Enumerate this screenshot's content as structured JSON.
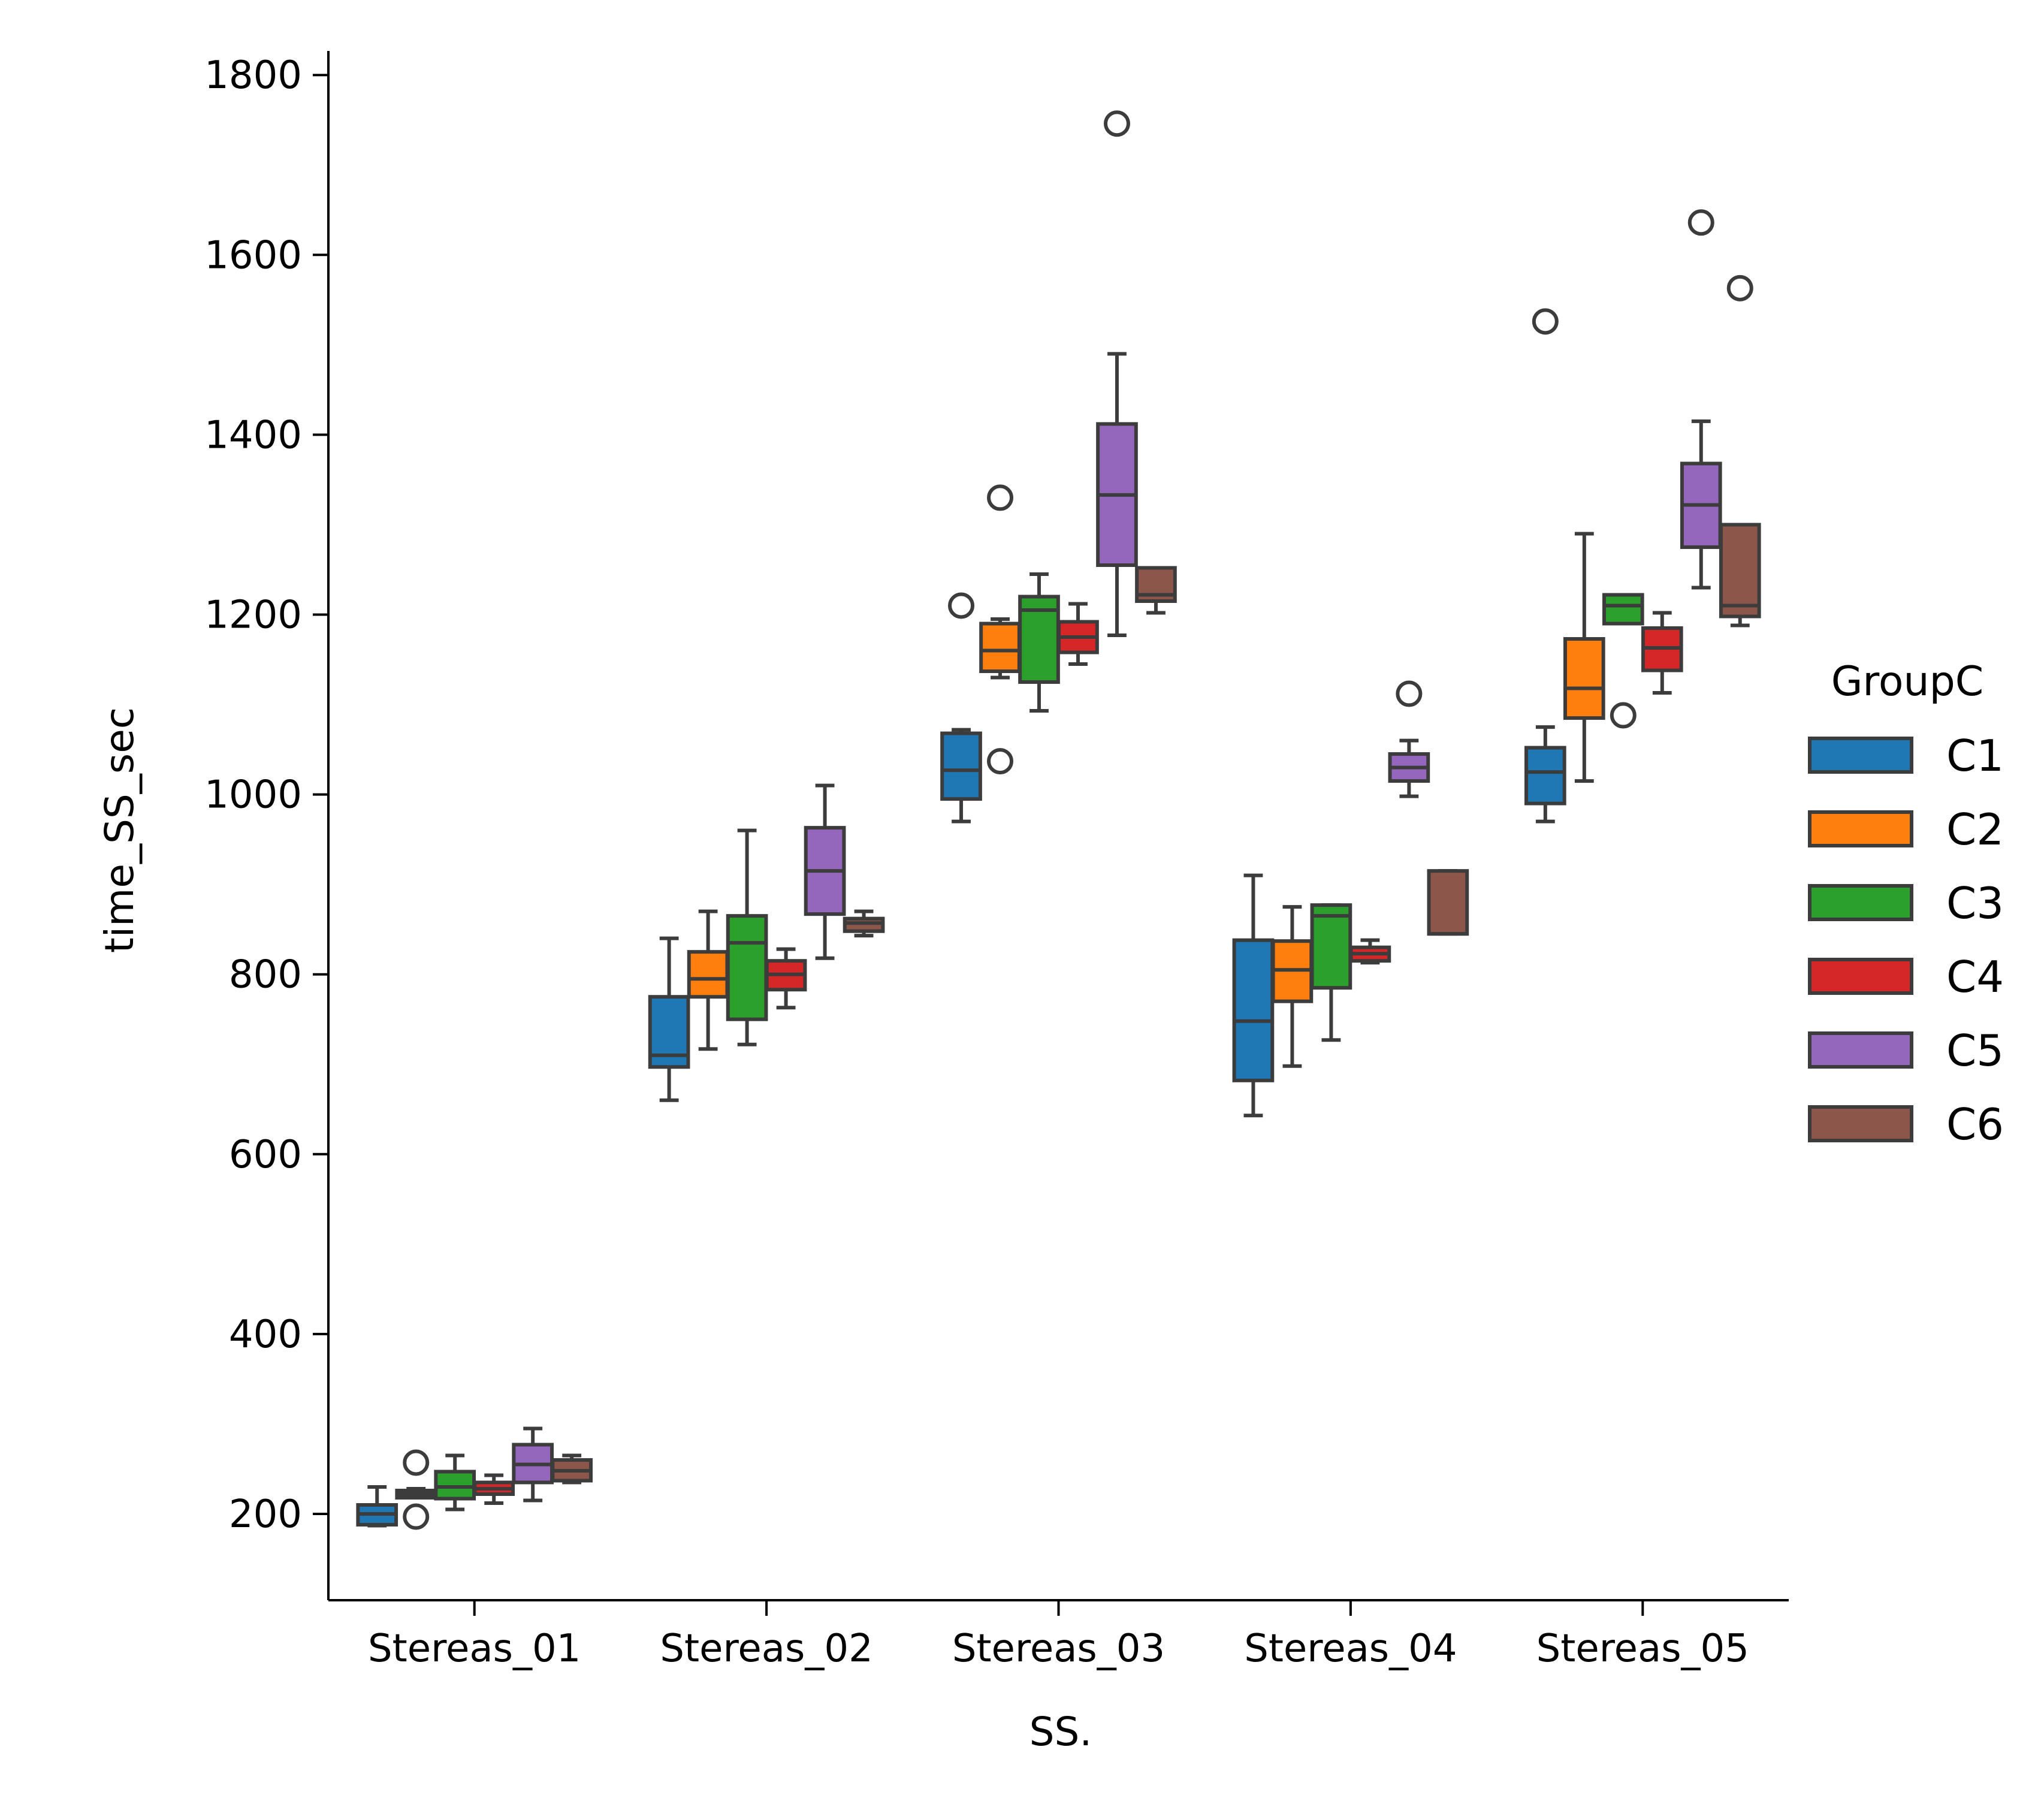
{
  "chart_data": {
    "type": "box",
    "xlabel": "SS.",
    "ylabel": "time_SS_sec",
    "ylim": [
      110,
      1825
    ],
    "yticks": [
      200,
      400,
      600,
      800,
      1000,
      1200,
      1400,
      1600,
      1800
    ],
    "categories": [
      "Stereas_01",
      "Stereas_02",
      "Stereas_03",
      "Stereas_04",
      "Stereas_05"
    ],
    "legend": {
      "title": "GroupC",
      "placement": "right"
    },
    "series": [
      {
        "name": "C1",
        "color": "#1f77b4",
        "boxes": [
          {
            "whislo": 187,
            "q1": 188,
            "med": 200,
            "q3": 210,
            "whishi": 230,
            "fliers": []
          },
          {
            "whislo": 660,
            "q1": 697,
            "med": 710,
            "q3": 775,
            "whishi": 840,
            "fliers": []
          },
          {
            "whislo": 970,
            "q1": 995,
            "med": 1027,
            "q3": 1068,
            "whishi": 1072,
            "fliers": [
              1210
            ]
          },
          {
            "whislo": 643,
            "q1": 682,
            "med": 748,
            "q3": 838,
            "whishi": 910,
            "fliers": []
          },
          {
            "whislo": 970,
            "q1": 990,
            "med": 1025,
            "q3": 1052,
            "whishi": 1075,
            "fliers": [
              1526
            ]
          }
        ]
      },
      {
        "name": "C2",
        "color": "#ff7f0e",
        "boxes": [
          {
            "whislo": 218,
            "q1": 218,
            "med": 222,
            "q3": 226,
            "whishi": 228,
            "fliers": [
              197,
              257
            ]
          },
          {
            "whislo": 717,
            "q1": 775,
            "med": 795,
            "q3": 825,
            "whishi": 870,
            "fliers": []
          },
          {
            "whislo": 1130,
            "q1": 1137,
            "med": 1160,
            "q3": 1190,
            "whishi": 1195,
            "fliers": [
              1037,
              1330
            ]
          },
          {
            "whislo": 698,
            "q1": 770,
            "med": 805,
            "q3": 837,
            "whishi": 875,
            "fliers": []
          },
          {
            "whislo": 1015,
            "q1": 1085,
            "med": 1118,
            "q3": 1173,
            "whishi": 1290,
            "fliers": []
          }
        ]
      },
      {
        "name": "C3",
        "color": "#2ca02c",
        "boxes": [
          {
            "whislo": 205,
            "q1": 217,
            "med": 230,
            "q3": 247,
            "whishi": 265,
            "fliers": []
          },
          {
            "whislo": 722,
            "q1": 750,
            "med": 835,
            "q3": 865,
            "whishi": 960,
            "fliers": []
          },
          {
            "whislo": 1093,
            "q1": 1125,
            "med": 1205,
            "q3": 1220,
            "whishi": 1245,
            "fliers": []
          },
          {
            "whislo": 727,
            "q1": 785,
            "med": 865,
            "q3": 877,
            "whishi": 877,
            "fliers": []
          },
          {
            "whislo": 1190,
            "q1": 1190,
            "med": 1210,
            "q3": 1222,
            "whishi": 1222,
            "fliers": [
              1088
            ]
          }
        ]
      },
      {
        "name": "C4",
        "color": "#d62728",
        "boxes": [
          {
            "whislo": 212,
            "q1": 222,
            "med": 228,
            "q3": 235,
            "whishi": 243,
            "fliers": []
          },
          {
            "whislo": 763,
            "q1": 783,
            "med": 800,
            "q3": 815,
            "whishi": 828,
            "fliers": []
          },
          {
            "whislo": 1145,
            "q1": 1158,
            "med": 1175,
            "q3": 1192,
            "whishi": 1212,
            "fliers": []
          },
          {
            "whislo": 813,
            "q1": 815,
            "med": 823,
            "q3": 830,
            "whishi": 838,
            "fliers": []
          },
          {
            "whislo": 1113,
            "q1": 1138,
            "med": 1163,
            "q3": 1185,
            "whishi": 1202,
            "fliers": []
          }
        ]
      },
      {
        "name": "C5",
        "color": "#9467bd",
        "boxes": [
          {
            "whislo": 215,
            "q1": 235,
            "med": 255,
            "q3": 277,
            "whishi": 295,
            "fliers": []
          },
          {
            "whislo": 818,
            "q1": 867,
            "med": 915,
            "q3": 963,
            "whishi": 1010,
            "fliers": []
          },
          {
            "whislo": 1177,
            "q1": 1255,
            "med": 1333,
            "q3": 1412,
            "whishi": 1490,
            "fliers": [
              1746
            ]
          },
          {
            "whislo": 998,
            "q1": 1015,
            "med": 1030,
            "q3": 1045,
            "whishi": 1060,
            "fliers": [
              1112
            ]
          },
          {
            "whislo": 1230,
            "q1": 1275,
            "med": 1322,
            "q3": 1368,
            "whishi": 1415,
            "fliers": [
              1636
            ]
          }
        ]
      },
      {
        "name": "C6",
        "color": "#8c564b",
        "boxes": [
          {
            "whislo": 235,
            "q1": 237,
            "med": 248,
            "q3": 260,
            "whishi": 265,
            "fliers": []
          },
          {
            "whislo": 843,
            "q1": 848,
            "med": 857,
            "q3": 862,
            "whishi": 870,
            "fliers": []
          },
          {
            "whislo": 1202,
            "q1": 1215,
            "med": 1222,
            "q3": 1252,
            "whishi": 1252,
            "fliers": []
          },
          {
            "whislo": 845,
            "q1": 845,
            "med": 845,
            "q3": 915,
            "whishi": 915,
            "fliers": []
          },
          {
            "whislo": 1188,
            "q1": 1198,
            "med": 1210,
            "q3": 1300,
            "whishi": 1300,
            "fliers": [
              1563
            ]
          }
        ]
      }
    ]
  }
}
